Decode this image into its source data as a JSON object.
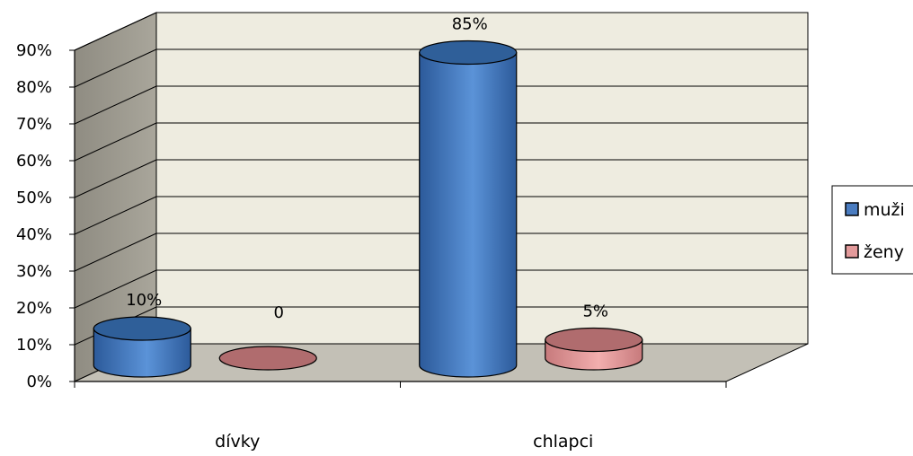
{
  "chart_data": {
    "type": "bar",
    "categories": [
      "dívky",
      "chlapci"
    ],
    "series": [
      {
        "name": "muži",
        "values": [
          10,
          85
        ],
        "labels": [
          "10%",
          "85%"
        ]
      },
      {
        "name": "ženy",
        "values": [
          0,
          5
        ],
        "labels": [
          "0",
          "5%"
        ]
      }
    ],
    "y_ticks": [
      "0%",
      "10%",
      "20%",
      "30%",
      "40%",
      "50%",
      "60%",
      "70%",
      "80%",
      "90%"
    ],
    "ylim": [
      0,
      90
    ],
    "title": "",
    "xlabel": "",
    "ylabel": "",
    "legend_position": "right",
    "grid": true,
    "style": "3d-cylinder"
  },
  "colors": {
    "muzi_top": "#2f5f99",
    "muzi_side_dark": "#2c5a9a",
    "muzi_side_light": "#5b93d8",
    "zeny_top": "#b06c6e",
    "zeny_side_dark": "#c77a7c",
    "zeny_side_light": "#f2aeae",
    "back_wall": "#eeece0",
    "side_wall": "#a9a69b",
    "floor": "#c3c0b6",
    "grid": "#000000"
  }
}
